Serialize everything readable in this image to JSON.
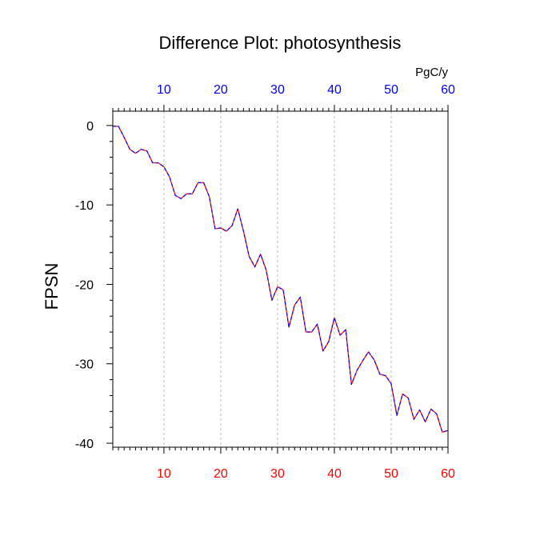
{
  "chart_data": {
    "type": "line",
    "title": "Difference Plot: photosynthesis",
    "ylabel": "FPSN",
    "xlabel": "",
    "top_axis_units": "PgC/y",
    "xlim": [
      1,
      60
    ],
    "ylim": [
      -40.5,
      1.8
    ],
    "x_ticks": [
      10,
      20,
      30,
      40,
      50,
      60
    ],
    "y_ticks": [
      0,
      -10,
      -20,
      -30,
      -40
    ],
    "x_tick_labels": [
      "10",
      "20",
      "30",
      "40",
      "50",
      "60"
    ],
    "y_tick_labels": [
      "0",
      "-10",
      "-20",
      "-30",
      "-40"
    ],
    "grid": "vertical dashed at major x ticks",
    "colors": {
      "bottom_axis_labels": "#ff0000",
      "top_axis_labels": "#0000ff",
      "series_line_a": "#ff0000",
      "series_line_b": "#0000ff",
      "grid": "#bbbbbb",
      "axis": "#000000"
    },
    "series": [
      {
        "x": [
          1,
          2,
          3,
          4,
          5,
          6,
          7,
          8,
          9,
          10,
          11,
          12,
          13,
          14,
          15,
          16,
          17,
          18,
          19,
          20,
          21,
          22,
          23,
          24,
          25,
          26,
          27,
          28,
          29,
          30,
          31,
          32,
          33,
          34,
          35,
          36,
          37,
          38,
          39,
          40,
          41,
          42,
          43,
          44,
          45,
          46,
          47,
          48,
          49,
          50,
          51,
          52,
          53,
          54,
          55,
          56,
          57,
          58,
          59,
          60
        ],
        "values": [
          -0.1,
          -0.1,
          -1.5,
          -3.0,
          -3.5,
          -3.0,
          -3.2,
          -4.7,
          -4.7,
          -5.2,
          -6.5,
          -8.8,
          -9.2,
          -8.6,
          -8.6,
          -7.2,
          -7.2,
          -9.0,
          -13.0,
          -12.9,
          -13.3,
          -12.6,
          -10.5,
          -13.3,
          -16.5,
          -17.8,
          -16.2,
          -18.2,
          -22.0,
          -20.3,
          -20.7,
          -25.4,
          -22.6,
          -21.6,
          -26.0,
          -26.0,
          -25.0,
          -28.4,
          -27.2,
          -24.2,
          -26.4,
          -25.7,
          -32.6,
          -30.8,
          -29.6,
          -28.5,
          -29.5,
          -31.3,
          -31.5,
          -32.5,
          -36.5,
          -33.8,
          -34.3,
          -37.0,
          -35.8,
          -37.3,
          -35.7,
          -36.3,
          -38.6,
          -38.4
        ]
      }
    ]
  }
}
